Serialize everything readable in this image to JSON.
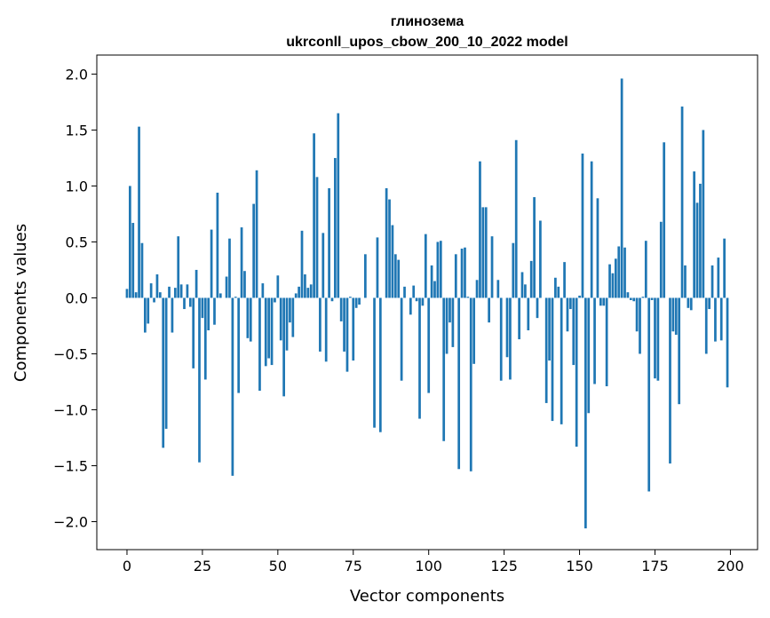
{
  "chart_data": {
    "type": "bar",
    "title_line1": "глинозема",
    "title_line2": "ukrconll_upos_cbow_200_10_2022 model",
    "xlabel": "Vector components",
    "ylabel": "Components values",
    "xlim": [
      -10,
      209
    ],
    "ylim": [
      -2.25,
      2.17
    ],
    "xticks": [
      0,
      25,
      50,
      75,
      100,
      125,
      150,
      175,
      200
    ],
    "yticks": [
      -2.0,
      -1.5,
      -1.0,
      -0.5,
      0.0,
      0.5,
      1.0,
      1.5,
      2.0
    ],
    "ytick_labels": [
      "−2.0",
      "−1.5",
      "−1.0",
      "−0.5",
      "0.0",
      "0.5",
      "1.0",
      "1.5",
      "2.0"
    ],
    "bar_color": "#1f77b4",
    "grid": false,
    "values": [
      0.08,
      1.0,
      0.67,
      0.05,
      1.53,
      0.49,
      -0.31,
      -0.23,
      0.13,
      -0.04,
      0.21,
      0.05,
      -1.34,
      -1.17,
      0.1,
      -0.31,
      0.09,
      0.55,
      0.12,
      -0.1,
      0.12,
      -0.08,
      -0.63,
      0.25,
      -1.47,
      -0.18,
      -0.73,
      -0.29,
      0.61,
      -0.24,
      0.94,
      0.04,
      0.0,
      0.19,
      0.53,
      -1.59,
      0.01,
      -0.85,
      0.63,
      0.24,
      -0.36,
      -0.39,
      0.84,
      1.14,
      -0.83,
      0.13,
      -0.61,
      -0.54,
      -0.6,
      -0.04,
      0.2,
      -0.38,
      -0.88,
      -0.47,
      -0.22,
      -0.35,
      0.04,
      0.1,
      0.6,
      0.21,
      0.09,
      0.12,
      1.47,
      1.08,
      -0.48,
      0.58,
      -0.57,
      0.98,
      -0.03,
      1.25,
      1.65,
      -0.21,
      -0.48,
      -0.66,
      0.01,
      -0.56,
      -0.09,
      -0.06,
      0.0,
      0.39,
      0.0,
      0.0,
      -1.16,
      0.54,
      -1.2,
      0.0,
      0.98,
      0.88,
      0.65,
      0.39,
      0.34,
      -0.74,
      0.1,
      0.0,
      -0.15,
      0.11,
      -0.03,
      -1.08,
      -0.07,
      0.57,
      -0.85,
      0.29,
      0.15,
      0.5,
      0.51,
      -1.28,
      -0.5,
      -0.22,
      -0.44,
      0.39,
      -1.53,
      0.44,
      0.45,
      0.01,
      -1.55,
      -0.59,
      0.16,
      1.22,
      0.81,
      0.81,
      -0.22,
      0.55,
      0.0,
      0.16,
      -0.74,
      0.0,
      -0.53,
      -0.73,
      0.49,
      1.41,
      -0.37,
      0.23,
      0.12,
      -0.29,
      0.33,
      0.9,
      -0.18,
      0.69,
      0.0,
      -0.94,
      -0.56,
      -1.1,
      0.18,
      0.1,
      -1.13,
      0.32,
      -0.3,
      -0.1,
      -0.6,
      -1.33,
      0.02,
      1.29,
      -2.06,
      -1.03,
      1.22,
      -0.77,
      0.89,
      -0.07,
      -0.07,
      -0.79,
      0.3,
      0.22,
      0.35,
      0.46,
      1.96,
      0.45,
      0.05,
      -0.02,
      -0.03,
      -0.3,
      -0.5,
      0.01,
      0.51,
      -1.73,
      -0.02,
      -0.72,
      -0.74,
      0.68,
      1.39,
      0.0,
      -1.48,
      -0.3,
      -0.33,
      -0.95,
      1.71,
      0.29,
      -0.09,
      -0.11,
      1.13,
      0.85,
      1.02,
      1.5,
      -0.5,
      -0.1,
      0.29,
      -0.39,
      0.36,
      -0.38,
      0.53,
      -0.8
    ]
  }
}
